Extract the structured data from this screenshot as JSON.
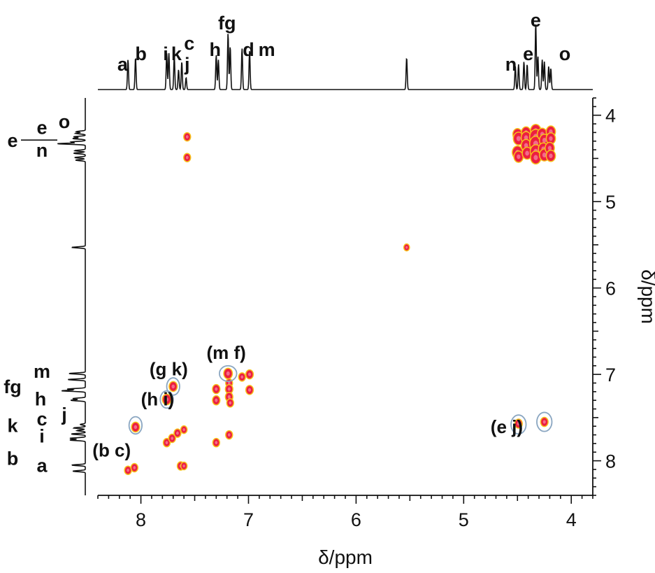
{
  "chart_data": {
    "type": "heatmap",
    "subtype": "2D NMR COSY",
    "xlabel": "δ/ppm",
    "ylabel": "δ/ppm",
    "xlim": [
      8.4,
      3.8
    ],
    "ylim": [
      3.8,
      8.4
    ],
    "x_ticks": [
      8,
      7,
      6,
      5,
      4
    ],
    "y_ticks": [
      4,
      5,
      6,
      7,
      8
    ],
    "x_tick_labels": [
      "8",
      "7",
      "6",
      "5",
      "4"
    ],
    "y_tick_labels": [
      "4",
      "5",
      "6",
      "7",
      "8"
    ],
    "colors": {
      "core": "#e8173a",
      "halo": "#f7c21b",
      "circle": "#8aa6c1",
      "line": "#111111"
    },
    "projection_peaks": [
      {
        "ppm": 8.12,
        "h": 0.45
      },
      {
        "ppm": 8.05,
        "h": 0.48
      },
      {
        "ppm": 7.76,
        "h": 0.55
      },
      {
        "ppm": 7.74,
        "h": 0.55
      },
      {
        "ppm": 7.69,
        "h": 0.5
      },
      {
        "ppm": 7.65,
        "h": 0.3
      },
      {
        "ppm": 7.62,
        "h": 0.42
      },
      {
        "ppm": 7.58,
        "h": 0.18
      },
      {
        "ppm": 7.3,
        "h": 0.52
      },
      {
        "ppm": 7.28,
        "h": 0.45
      },
      {
        "ppm": 7.19,
        "h": 0.85
      },
      {
        "ppm": 7.17,
        "h": 0.65
      },
      {
        "ppm": 7.06,
        "h": 0.62
      },
      {
        "ppm": 6.99,
        "h": 0.58
      },
      {
        "ppm": 5.53,
        "h": 0.48
      },
      {
        "ppm": 4.52,
        "h": 0.35
      },
      {
        "ppm": 4.49,
        "h": 0.38
      },
      {
        "ppm": 4.44,
        "h": 0.42
      },
      {
        "ppm": 4.41,
        "h": 0.38
      },
      {
        "ppm": 4.33,
        "h": 1.0
      },
      {
        "ppm": 4.31,
        "h": 0.5
      },
      {
        "ppm": 4.27,
        "h": 0.45
      },
      {
        "ppm": 4.25,
        "h": 0.42
      },
      {
        "ppm": 4.21,
        "h": 0.35
      },
      {
        "ppm": 4.19,
        "h": 0.32
      }
    ],
    "top_peak_labels": [
      {
        "text": "a",
        "ppm": 8.17,
        "row": 0
      },
      {
        "text": "b",
        "ppm": 8.0,
        "row": 1
      },
      {
        "text": "i",
        "ppm": 7.77,
        "row": 1
      },
      {
        "text": "k",
        "ppm": 7.67,
        "row": 1
      },
      {
        "text": "c",
        "ppm": 7.55,
        "row": 2
      },
      {
        "text": "j",
        "ppm": 7.57,
        "row": 0
      },
      {
        "text": "h",
        "ppm": 7.31,
        "row": 3
      },
      {
        "text": "fg",
        "ppm": 7.2,
        "row": 4
      },
      {
        "text": "d",
        "ppm": 7.0,
        "row": 3
      },
      {
        "text": "m",
        "ppm": 6.83,
        "row": 3
      },
      {
        "text": "n",
        "ppm": 4.56,
        "row": 0
      },
      {
        "text": "e",
        "ppm": 4.4,
        "row": 1
      },
      {
        "text": "e",
        "ppm": 4.33,
        "row": 5
      },
      {
        "text": "o",
        "ppm": 4.06,
        "row": 1
      }
    ],
    "left_peak_labels": [
      {
        "text": "o",
        "ppm": 4.1,
        "dx": 0
      },
      {
        "text": "e",
        "ppm": 4.17,
        "dx": 1
      },
      {
        "text": "e",
        "ppm": 4.32,
        "dx": 2
      },
      {
        "text": "n",
        "ppm": 4.43,
        "dx": 1
      },
      {
        "text": "m",
        "ppm": 6.99,
        "dx": 1
      },
      {
        "text": "fg",
        "ppm": 7.17,
        "dx": 2
      },
      {
        "text": "h",
        "ppm": 7.31,
        "dx": 3
      },
      {
        "text": "c",
        "ppm": 7.54,
        "dx": 1
      },
      {
        "text": "j",
        "ppm": 7.49,
        "dx": 0
      },
      {
        "text": "k",
        "ppm": 7.62,
        "dx": 2
      },
      {
        "text": "i",
        "ppm": 7.74,
        "dx": 1
      },
      {
        "text": "b",
        "ppm": 8.0,
        "dx": 2
      },
      {
        "text": "a",
        "ppm": 8.08,
        "dx": 1
      }
    ],
    "cross_peaks": [
      {
        "x": 7.57,
        "y": 4.25,
        "r": 1.0
      },
      {
        "x": 7.57,
        "y": 4.49,
        "r": 1.0
      },
      {
        "x": 4.5,
        "y": 4.22,
        "r": 1.4
      },
      {
        "x": 4.49,
        "y": 4.27,
        "r": 1.6
      },
      {
        "x": 4.5,
        "y": 4.43,
        "r": 1.6
      },
      {
        "x": 4.49,
        "y": 4.48,
        "r": 1.4
      },
      {
        "x": 4.42,
        "y": 4.2,
        "r": 1.4
      },
      {
        "x": 4.42,
        "y": 4.26,
        "r": 1.5
      },
      {
        "x": 4.42,
        "y": 4.35,
        "r": 1.5
      },
      {
        "x": 4.41,
        "y": 4.44,
        "r": 1.5
      },
      {
        "x": 4.33,
        "y": 4.18,
        "r": 1.6
      },
      {
        "x": 4.33,
        "y": 4.25,
        "r": 1.9
      },
      {
        "x": 4.33,
        "y": 4.33,
        "r": 1.9
      },
      {
        "x": 4.33,
        "y": 4.42,
        "r": 1.7
      },
      {
        "x": 4.33,
        "y": 4.49,
        "r": 1.6
      },
      {
        "x": 4.27,
        "y": 4.22,
        "r": 1.5
      },
      {
        "x": 4.25,
        "y": 4.29,
        "r": 1.5
      },
      {
        "x": 4.26,
        "y": 4.39,
        "r": 1.5
      },
      {
        "x": 4.25,
        "y": 4.46,
        "r": 1.5
      },
      {
        "x": 4.19,
        "y": 4.19,
        "r": 1.4
      },
      {
        "x": 4.19,
        "y": 4.27,
        "r": 1.4
      },
      {
        "x": 4.2,
        "y": 4.38,
        "r": 1.4
      },
      {
        "x": 4.19,
        "y": 4.47,
        "r": 1.4
      },
      {
        "x": 5.53,
        "y": 5.53,
        "r": 0.8
      },
      {
        "x": 7.76,
        "y": 7.29,
        "r": 1.3
      },
      {
        "x": 7.7,
        "y": 7.14,
        "r": 1.2
      },
      {
        "x": 8.05,
        "y": 7.61,
        "r": 1.2
      },
      {
        "x": 8.12,
        "y": 8.11,
        "r": 1.0
      },
      {
        "x": 8.06,
        "y": 8.08,
        "r": 1.0
      },
      {
        "x": 7.63,
        "y": 8.06,
        "r": 1.0
      },
      {
        "x": 7.6,
        "y": 8.06,
        "r": 0.9
      },
      {
        "x": 7.76,
        "y": 7.79,
        "r": 1.0
      },
      {
        "x": 7.71,
        "y": 7.74,
        "r": 1.0
      },
      {
        "x": 7.66,
        "y": 7.68,
        "r": 1.0
      },
      {
        "x": 7.6,
        "y": 7.64,
        "r": 0.9
      },
      {
        "x": 7.3,
        "y": 7.79,
        "r": 1.0
      },
      {
        "x": 7.18,
        "y": 7.7,
        "r": 1.0
      },
      {
        "x": 7.3,
        "y": 7.17,
        "r": 1.1
      },
      {
        "x": 7.3,
        "y": 7.3,
        "r": 1.1
      },
      {
        "x": 7.19,
        "y": 6.99,
        "r": 1.3
      },
      {
        "x": 7.18,
        "y": 7.1,
        "r": 1.0
      },
      {
        "x": 7.18,
        "y": 7.17,
        "r": 1.1
      },
      {
        "x": 7.18,
        "y": 7.26,
        "r": 1.1
      },
      {
        "x": 7.17,
        "y": 7.33,
        "r": 1.0
      },
      {
        "x": 7.06,
        "y": 7.03,
        "r": 1.0
      },
      {
        "x": 6.99,
        "y": 7.0,
        "r": 1.1
      },
      {
        "x": 6.99,
        "y": 7.18,
        "r": 1.1
      },
      {
        "x": 4.49,
        "y": 7.57,
        "r": 1.1
      },
      {
        "x": 4.25,
        "y": 7.55,
        "r": 1.1
      }
    ],
    "highlight_circles": [
      {
        "x": 8.05,
        "y": 7.59,
        "rx": 0.06,
        "ry": 0.1
      },
      {
        "x": 7.76,
        "y": 7.29,
        "rx": 0.06,
        "ry": 0.1
      },
      {
        "x": 7.7,
        "y": 7.14,
        "rx": 0.06,
        "ry": 0.1
      },
      {
        "x": 7.19,
        "y": 6.99,
        "rx": 0.08,
        "ry": 0.09
      },
      {
        "x": 4.49,
        "y": 7.58,
        "rx": 0.07,
        "ry": 0.11
      },
      {
        "x": 4.25,
        "y": 7.55,
        "rx": 0.07,
        "ry": 0.11
      }
    ],
    "annotations": [
      {
        "text": "(b c)",
        "x": 8.45,
        "y": 7.87
      },
      {
        "text": "(h i)",
        "x": 8.0,
        "y": 7.28
      },
      {
        "text": "(g k)",
        "x": 7.92,
        "y": 6.93
      },
      {
        "text": "(m f)",
        "x": 7.39,
        "y": 6.74
      },
      {
        "text": "(e j)",
        "x": 4.75,
        "y": 7.6
      }
    ]
  }
}
